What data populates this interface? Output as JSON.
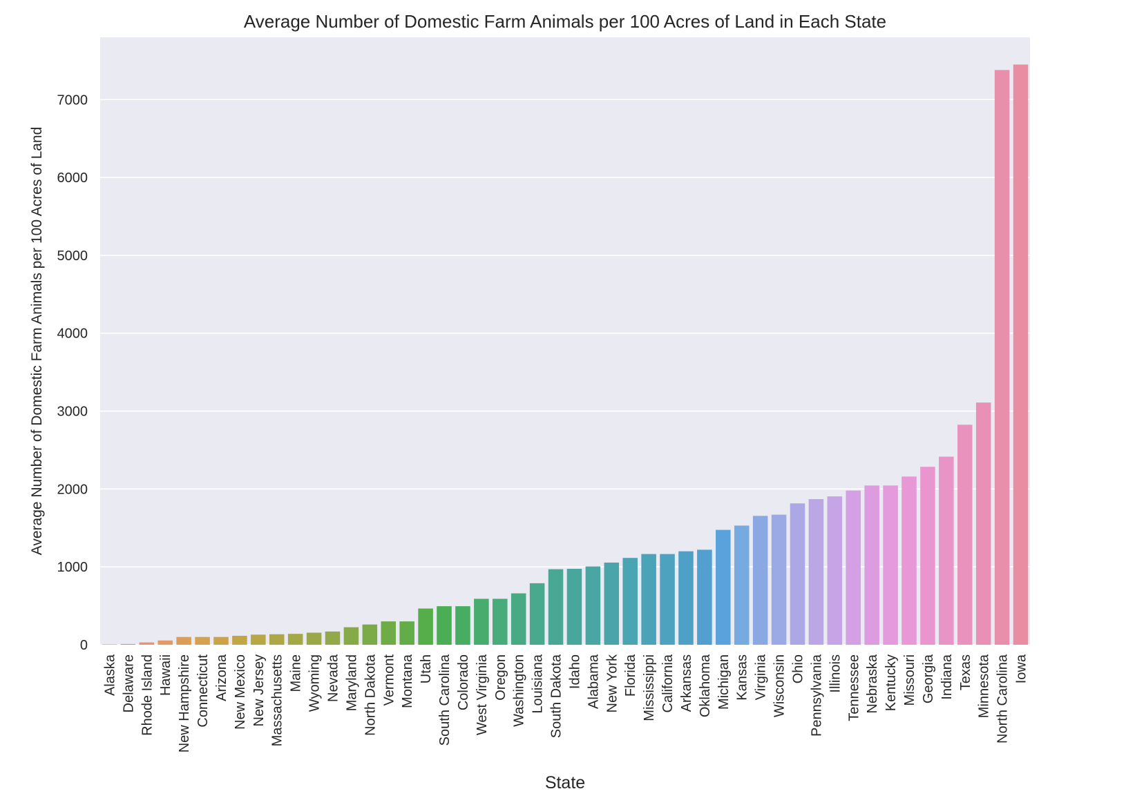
{
  "chart_data": {
    "type": "bar",
    "title": "Average Number of Domestic Farm Animals per 100 Acres of Land in Each State",
    "xlabel": "State",
    "ylabel": "Average Number of Domestic Farm Animals per 100 Acres of Land",
    "ylim": [
      0,
      7800
    ],
    "yticks": [
      0,
      1000,
      2000,
      3000,
      4000,
      5000,
      6000,
      7000
    ],
    "ytick_labels": [
      "0",
      "1000",
      "2000",
      "3000",
      "4000",
      "5000",
      "6000",
      "7000"
    ],
    "grid": true,
    "legend": "none",
    "plot_background": "#eaeaf2",
    "grid_color": "#ffffff",
    "categories": [
      "Alaska",
      "Delaware",
      "Rhode Island",
      "Hawaii",
      "New Hampshire",
      "Connecticut",
      "Arizona",
      "New Mexico",
      "New Jersey",
      "Massachusetts",
      "Maine",
      "Wyoming",
      "Nevada",
      "Maryland",
      "North Dakota",
      "Vermont",
      "Montana",
      "Utah",
      "South Carolina",
      "Colorado",
      "West Virginia",
      "Oregon",
      "Washington",
      "Louisiana",
      "South Dakota",
      "Idaho",
      "Alabama",
      "New York",
      "Florida",
      "Mississippi",
      "California",
      "Arkansas",
      "Oklahoma",
      "Michigan",
      "Kansas",
      "Virginia",
      "Wisconsin",
      "Ohio",
      "Pennsylvania",
      "Illinois",
      "Tennessee",
      "Nebraska",
      "Kentucky",
      "Missouri",
      "Georgia",
      "Indiana",
      "Texas",
      "Minnesota",
      "North Carolina",
      "Iowa"
    ],
    "values": [
      5,
      10,
      30,
      55,
      100,
      100,
      100,
      115,
      130,
      135,
      140,
      155,
      170,
      225,
      260,
      300,
      300,
      465,
      495,
      495,
      590,
      590,
      660,
      790,
      970,
      975,
      1005,
      1055,
      1115,
      1165,
      1165,
      1200,
      1220,
      1475,
      1530,
      1655,
      1670,
      1815,
      1870,
      1905,
      1980,
      2045,
      2045,
      2160,
      2285,
      2415,
      2825,
      3110,
      7380,
      7450
    ],
    "colors": [
      "#e8859b",
      "#ea8a88",
      "#e89378",
      "#e59966",
      "#de9d57",
      "#d6a04d",
      "#cca347",
      "#c2a545",
      "#b7a745",
      "#aea745",
      "#a5a846",
      "#9ba847",
      "#91a948",
      "#86aa48",
      "#7bab48",
      "#6fac48",
      "#62ad48",
      "#55ae4a",
      "#4aae55",
      "#47ad62",
      "#47ad6e",
      "#47ac79",
      "#47aa83",
      "#48a98c",
      "#48a894",
      "#48a79c",
      "#49a6a3",
      "#4aa5aa",
      "#4aa4b1",
      "#4ba3b8",
      "#4ca2bf",
      "#4ea0c7",
      "#52a0d0",
      "#5aa2dc",
      "#77aae0",
      "#8aa9e3",
      "#9ba9e5",
      "#aca8e6",
      "#bba6e6",
      "#c7a4e5",
      "#d2a0e3",
      "#dd9ce0",
      "#e49adc",
      "#e898d5",
      "#e996ce",
      "#e994c6",
      "#e992be",
      "#e990b5",
      "#e88fab",
      "#e88da2"
    ]
  }
}
